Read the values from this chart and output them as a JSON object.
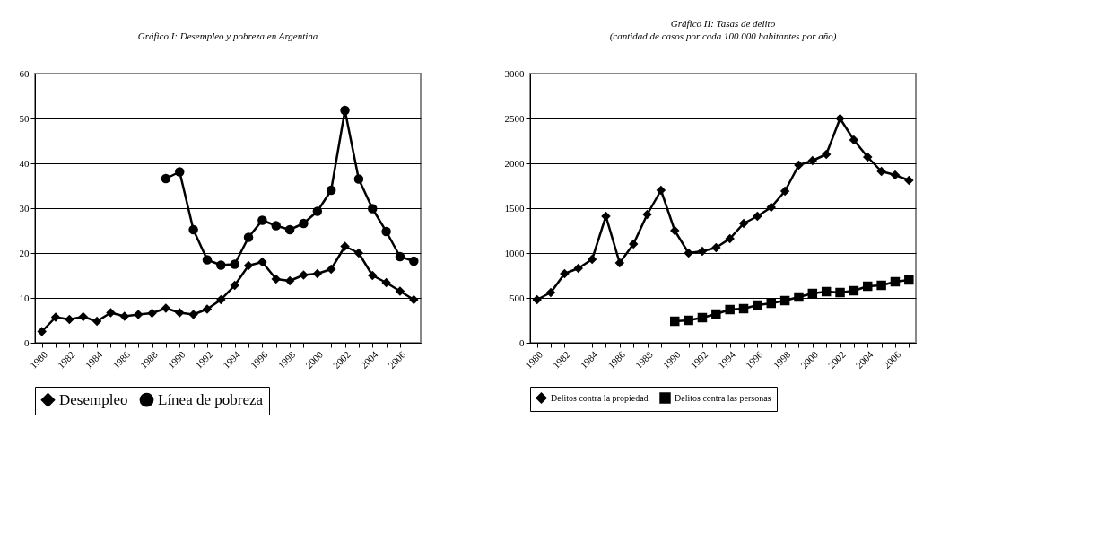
{
  "chart_data": [
    {
      "type": "line",
      "title": "Gráfico I: Desempleo y pobreza en Argentina",
      "categories": [
        "1980",
        null,
        "1982",
        null,
        "1984",
        null,
        "1986",
        null,
        "1988",
        null,
        "1990",
        null,
        "1992",
        null,
        "1994",
        null,
        "1996",
        null,
        "1998",
        null,
        "2000",
        null,
        "2002",
        null,
        "2004",
        null,
        "2006",
        null
      ],
      "series": [
        {
          "name": "Desempleo",
          "color": "#000000",
          "marker": "diamond",
          "values": [
            2.5,
            5.7,
            5.2,
            5.8,
            4.8,
            6.7,
            5.9,
            6.3,
            6.6,
            7.7,
            6.7,
            6.3,
            7.5,
            9.6,
            12.8,
            17.2,
            18.0,
            14.2,
            13.8,
            15.1,
            15.4,
            16.4,
            21.5,
            20.0,
            15.0,
            13.4,
            11.5,
            9.6
          ]
        },
        {
          "name": "Línea de pobreza",
          "color": "#000000",
          "marker": "circle",
          "values": [
            null,
            null,
            null,
            null,
            null,
            null,
            null,
            null,
            null,
            36.6,
            38.1,
            25.2,
            18.5,
            17.3,
            17.5,
            23.5,
            27.3,
            26.1,
            25.2,
            26.6,
            29.3,
            34.0,
            51.8,
            36.5,
            29.9,
            24.8,
            19.2,
            18.2
          ]
        }
      ],
      "ylim": [
        0,
        60
      ],
      "yticks": [
        0,
        10,
        20,
        30,
        40,
        50,
        60
      ],
      "grid": "y",
      "legend": "bottom"
    },
    {
      "type": "line",
      "title": "Gráfico II: Tasas de delito",
      "subtitle": "(cantidad de casos por cada 100.000 habitantes por año)",
      "categories": [
        "1980",
        null,
        "1982",
        null,
        "1984",
        null,
        "1986",
        null,
        "1988",
        null,
        "1990",
        null,
        "1992",
        null,
        "1994",
        null,
        "1996",
        null,
        "1998",
        null,
        "2000",
        null,
        "2002",
        null,
        "2004",
        null,
        "2006",
        null
      ],
      "series": [
        {
          "name": "Delitos contra la propiedad",
          "color": "#000000",
          "marker": "diamond",
          "values": [
            480,
            560,
            770,
            830,
            930,
            1410,
            890,
            1100,
            1430,
            1700,
            1250,
            1000,
            1020,
            1060,
            1160,
            1330,
            1410,
            1510,
            1690,
            1980,
            2030,
            2100,
            2500,
            2260,
            2070,
            1910,
            1870,
            1810
          ]
        },
        {
          "name": "Delitos contra las personas",
          "color": "#000000",
          "marker": "square",
          "values": [
            null,
            null,
            null,
            null,
            null,
            null,
            null,
            null,
            null,
            null,
            240,
            250,
            280,
            320,
            370,
            380,
            420,
            440,
            470,
            510,
            550,
            570,
            560,
            580,
            630,
            640,
            680,
            700
          ]
        }
      ],
      "ylim": [
        0,
        3000
      ],
      "yticks": [
        0,
        500,
        1000,
        1500,
        2000,
        2500,
        3000
      ],
      "grid": "y",
      "legend": "bottom"
    }
  ]
}
